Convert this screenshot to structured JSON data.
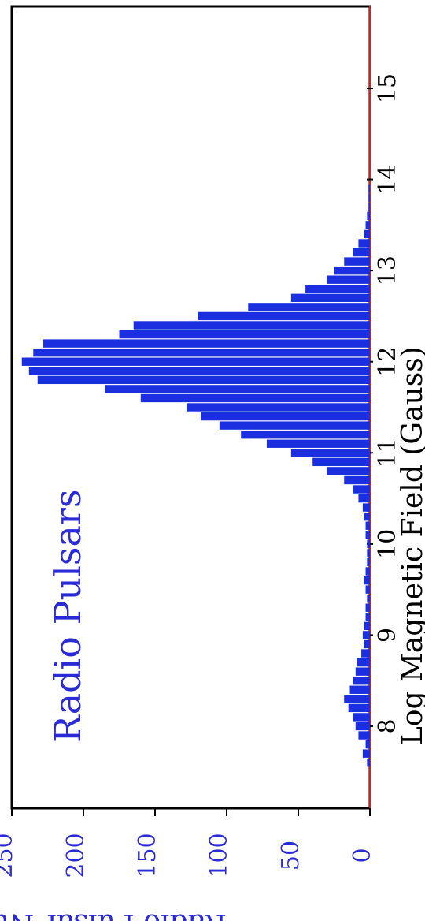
{
  "chart_data": {
    "type": "bar",
    "title": "Radio Pulsars",
    "xlabel": "Log Magnetic Field (Gauss)",
    "ylabel": "Radio Pulsar Number",
    "xlim": [
      7.1,
      15.9
    ],
    "ylim": [
      0,
      250
    ],
    "x_ticks": [
      "8",
      "9",
      "10",
      "11",
      "12",
      "13",
      "14",
      "15"
    ],
    "y_ticks": [
      "0",
      "50",
      "100",
      "150",
      "200",
      "250"
    ],
    "bins": [
      {
        "x": 7.6,
        "y": 2
      },
      {
        "x": 7.7,
        "y": 5
      },
      {
        "x": 7.8,
        "y": 3
      },
      {
        "x": 7.9,
        "y": 8
      },
      {
        "x": 8.0,
        "y": 10
      },
      {
        "x": 8.1,
        "y": 12
      },
      {
        "x": 8.2,
        "y": 15
      },
      {
        "x": 8.3,
        "y": 18
      },
      {
        "x": 8.4,
        "y": 14
      },
      {
        "x": 8.5,
        "y": 12
      },
      {
        "x": 8.6,
        "y": 10
      },
      {
        "x": 8.7,
        "y": 9
      },
      {
        "x": 8.8,
        "y": 6
      },
      {
        "x": 8.9,
        "y": 4
      },
      {
        "x": 9.0,
        "y": 5
      },
      {
        "x": 9.1,
        "y": 4
      },
      {
        "x": 9.2,
        "y": 3
      },
      {
        "x": 9.3,
        "y": 3
      },
      {
        "x": 9.4,
        "y": 2
      },
      {
        "x": 9.5,
        "y": 3
      },
      {
        "x": 9.6,
        "y": 4
      },
      {
        "x": 9.7,
        "y": 3
      },
      {
        "x": 9.8,
        "y": 2
      },
      {
        "x": 9.9,
        "y": 2
      },
      {
        "x": 10.0,
        "y": 2
      },
      {
        "x": 10.1,
        "y": 3
      },
      {
        "x": 10.2,
        "y": 3
      },
      {
        "x": 10.3,
        "y": 4
      },
      {
        "x": 10.4,
        "y": 5
      },
      {
        "x": 10.5,
        "y": 8
      },
      {
        "x": 10.6,
        "y": 12
      },
      {
        "x": 10.7,
        "y": 18
      },
      {
        "x": 10.8,
        "y": 30
      },
      {
        "x": 10.9,
        "y": 40
      },
      {
        "x": 11.0,
        "y": 55
      },
      {
        "x": 11.1,
        "y": 72
      },
      {
        "x": 11.2,
        "y": 90
      },
      {
        "x": 11.3,
        "y": 105
      },
      {
        "x": 11.4,
        "y": 118
      },
      {
        "x": 11.5,
        "y": 128
      },
      {
        "x": 11.6,
        "y": 160
      },
      {
        "x": 11.7,
        "y": 185
      },
      {
        "x": 11.8,
        "y": 232
      },
      {
        "x": 11.9,
        "y": 238
      },
      {
        "x": 12.0,
        "y": 243
      },
      {
        "x": 12.1,
        "y": 235
      },
      {
        "x": 12.2,
        "y": 228
      },
      {
        "x": 12.3,
        "y": 175
      },
      {
        "x": 12.4,
        "y": 165
      },
      {
        "x": 12.5,
        "y": 120
      },
      {
        "x": 12.6,
        "y": 85
      },
      {
        "x": 12.7,
        "y": 55
      },
      {
        "x": 12.8,
        "y": 45
      },
      {
        "x": 12.9,
        "y": 30
      },
      {
        "x": 13.0,
        "y": 25
      },
      {
        "x": 13.1,
        "y": 18
      },
      {
        "x": 13.2,
        "y": 12
      },
      {
        "x": 13.3,
        "y": 8
      },
      {
        "x": 13.4,
        "y": 4
      },
      {
        "x": 13.5,
        "y": 3
      },
      {
        "x": 13.6,
        "y": 2
      },
      {
        "x": 13.7,
        "y": 1
      },
      {
        "x": 13.8,
        "y": 1
      },
      {
        "x": 13.9,
        "y": 1
      }
    ],
    "grid": false,
    "colors": {
      "bars": "#1c2fe0",
      "axis_text": "#2b2bd6",
      "frame": "#000000",
      "accent": "#e01b1b"
    }
  }
}
